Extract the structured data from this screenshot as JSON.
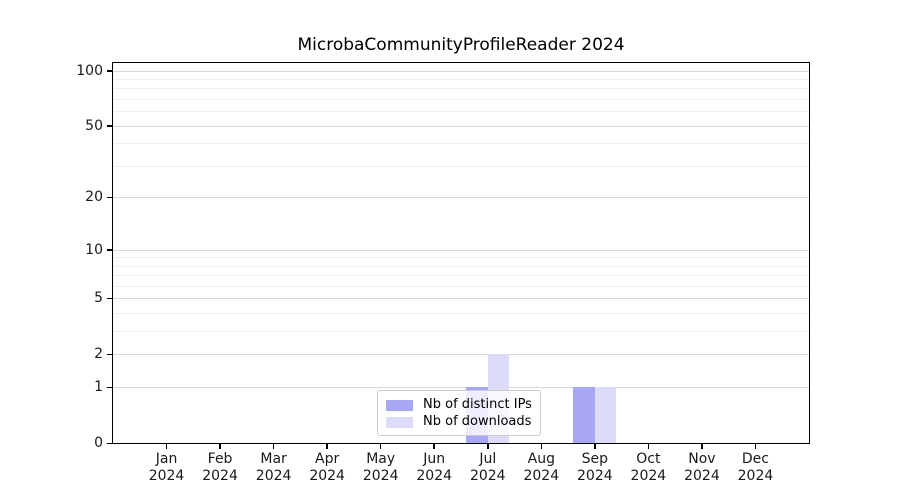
{
  "chart_data": {
    "type": "bar",
    "title": "MicrobaCommunityProfileReader 2024",
    "categories": [
      "Jan",
      "Feb",
      "Mar",
      "Apr",
      "May",
      "Jun",
      "Jul",
      "Aug",
      "Sep",
      "Oct",
      "Nov",
      "Dec"
    ],
    "category_year": "2024",
    "series": [
      {
        "name": "Nb of distinct IPs",
        "color": "#a7a7f3",
        "values": [
          0,
          0,
          0,
          0,
          0,
          0,
          1,
          0,
          1,
          0,
          0,
          0
        ]
      },
      {
        "name": "Nb of downloads",
        "color": "#dcdcf9",
        "values": [
          0,
          0,
          0,
          0,
          0,
          0,
          2,
          0,
          1,
          0,
          0,
          0
        ]
      }
    ],
    "y_scale": "log1p",
    "ylim": [
      0,
      110
    ],
    "y_ticks": [
      0,
      1,
      2,
      5,
      10,
      20,
      50,
      100
    ],
    "y_minor_ticks": [
      3,
      4,
      6,
      7,
      8,
      9,
      30,
      40,
      60,
      70,
      80,
      90
    ],
    "grid": "both",
    "legend_position": "lower-center-inside"
  },
  "style": {
    "bar_dark": "#a7a7f3",
    "bar_light": "#dcdcf9",
    "major_grid": "#d7d7d7",
    "minor_grid": "#efefef",
    "axis_color": "#000000",
    "text_color": "#191919",
    "legend_border": "#cccccc",
    "legend_bg": "rgba(255,255,255,0.8)"
  }
}
